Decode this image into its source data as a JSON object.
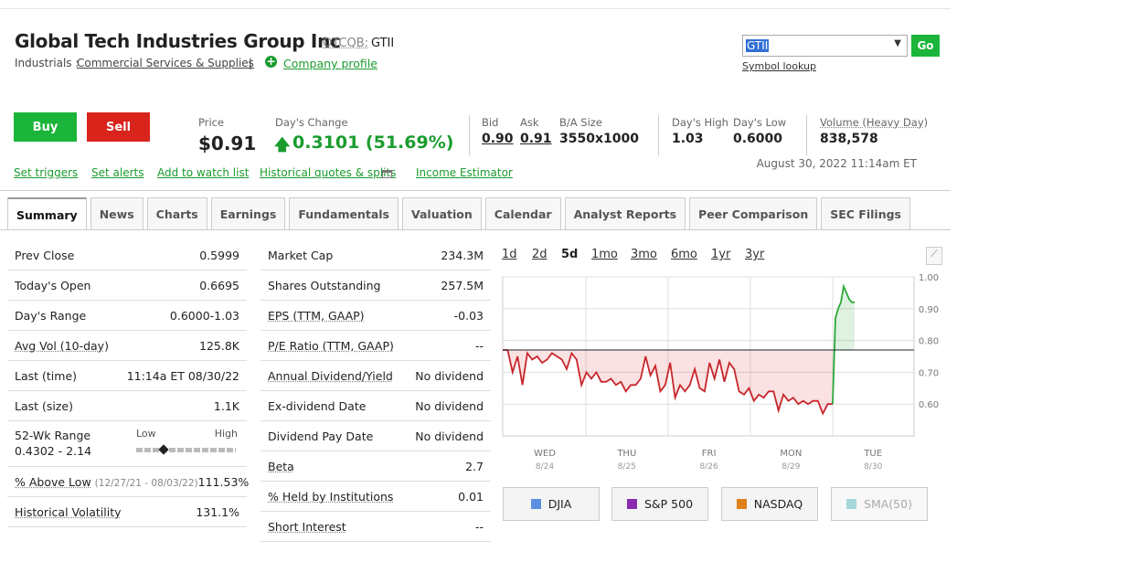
{
  "header": {
    "title": "Global Tech Industries Group Inc",
    "exchange": "OTCQB:",
    "symbol": "GTII",
    "sector": "Industrials :",
    "industry": "Commercial Services & Supplies",
    "separator": "|",
    "profile_link": "Company profile"
  },
  "search": {
    "value": "GTII",
    "button": "Go",
    "lookup": "Symbol lookup"
  },
  "actions": {
    "buy": "Buy",
    "sell": "Sell"
  },
  "quote": {
    "price_label": "Price",
    "price": "$0.91",
    "change_label": "Day's Change",
    "change": "0.3101 (51.69%)",
    "bid_label": "Bid",
    "bid": "0.90",
    "ask_label": "Ask",
    "ask": "0.91",
    "size_label": "B/A Size",
    "size": "3550x1000",
    "high_label": "Day's High",
    "high": "1.03",
    "low_label": "Day's Low",
    "low": "0.6000",
    "volume_label": "Volume (Heavy Day)",
    "volume": "838,578",
    "timestamp": "August 30, 2022 11:14am ET"
  },
  "links": [
    "Set triggers",
    "Set alerts",
    "Add to watch list",
    "Historical quotes & splits",
    "Income Estimator"
  ],
  "tabs": [
    "Summary",
    "News",
    "Charts",
    "Earnings",
    "Fundamentals",
    "Valuation",
    "Calendar",
    "Analyst Reports",
    "Peer Comparison",
    "SEC Filings"
  ],
  "active_tab": "Summary",
  "summary_left": [
    {
      "label": "Prev Close",
      "value": "0.5999"
    },
    {
      "label": "Today's Open",
      "value": "0.6695"
    },
    {
      "label": "Day's Range",
      "value": "0.6000-1.03"
    },
    {
      "label": "Avg Vol (10-day)",
      "value": "125.8K"
    },
    {
      "label": "Last (time)",
      "value": "11:14a ET 08/30/22"
    },
    {
      "label": "Last (size)",
      "value": "1.1K"
    },
    {
      "label": "52-Wk Range",
      "value": "0.4302 - 2.14",
      "low": "Low",
      "high": "High"
    },
    {
      "label": "% Above Low",
      "note": "(12/27/21 - 08/03/22)",
      "value": "111.53%"
    },
    {
      "label": "Historical Volatility",
      "value": "131.1%"
    }
  ],
  "summary_mid": [
    {
      "label": "Market Cap",
      "value": "234.3M"
    },
    {
      "label": "Shares Outstanding",
      "value": "257.5M"
    },
    {
      "label": "EPS (TTM, GAAP)",
      "value": "-0.03"
    },
    {
      "label": "P/E Ratio (TTM, GAAP)",
      "value": "--"
    },
    {
      "label": "Annual Dividend/Yield",
      "value": "No dividend"
    },
    {
      "label": "Ex-dividend Date",
      "value": "No dividend"
    },
    {
      "label": "Dividend Pay Date",
      "value": "No dividend"
    },
    {
      "label": "Beta",
      "value": "2.7"
    },
    {
      "label": "% Held by Institutions",
      "value": "0.01"
    },
    {
      "label": "Short Interest",
      "value": "--"
    }
  ],
  "chart": {
    "type": "line",
    "ranges": [
      "1d",
      "2d",
      "5d",
      "1mo",
      "3mo",
      "6mo",
      "1yr",
      "3yr"
    ],
    "active_range": "5d",
    "ylim": [
      0.5,
      1.0
    ],
    "yticks": [
      {
        "value": 1.0,
        "label": "1.00"
      },
      {
        "value": 0.9,
        "label": "0.90"
      },
      {
        "value": 0.8,
        "label": "0.80"
      },
      {
        "value": 0.7,
        "label": "0.70"
      },
      {
        "value": 0.6,
        "label": "0.60"
      }
    ],
    "x_labels": [
      {
        "day": "WED",
        "date": "8/24"
      },
      {
        "day": "THU",
        "date": "8/25"
      },
      {
        "day": "FRI",
        "date": "8/26"
      },
      {
        "day": "MON",
        "date": "8/29"
      },
      {
        "day": "TUE",
        "date": "8/30"
      }
    ],
    "baseline": 0.77,
    "series": [
      {
        "color": "#c8262b",
        "values": [
          0.77,
          0.77,
          0.7,
          0.75,
          0.66,
          0.76,
          0.74,
          0.75,
          0.73,
          0.74,
          0.76,
          0.75,
          0.74,
          0.71,
          0.76,
          0.74,
          0.66,
          0.7,
          0.68,
          0.7,
          0.67,
          0.67,
          0.68,
          0.66,
          0.67,
          0.64,
          0.66,
          0.66,
          0.68,
          0.75,
          0.69,
          0.72,
          0.64,
          0.66,
          0.73,
          0.62,
          0.66,
          0.64,
          0.66,
          0.71,
          0.65,
          0.64,
          0.73,
          0.68,
          0.74,
          0.67,
          0.73,
          0.71,
          0.64,
          0.63,
          0.65,
          0.61,
          0.63,
          0.62,
          0.64,
          0.64,
          0.58,
          0.63,
          0.61,
          0.62,
          0.6,
          0.61,
          0.6,
          0.61,
          0.61,
          0.57,
          0.6,
          0.6
        ]
      },
      {
        "color": "#2aa838",
        "values": [
          0.6,
          0.87,
          0.9,
          0.92,
          0.97,
          0.95,
          0.93,
          0.92,
          0.92
        ]
      }
    ],
    "legend": [
      {
        "name": "DJIA",
        "color": "#5b8fe0"
      },
      {
        "name": "S&P 500",
        "color": "#8a2ab3"
      },
      {
        "name": "NASDAQ",
        "color": "#e0801a"
      },
      {
        "name": "SMA(50)",
        "color": "#a6d8da",
        "disabled": true
      }
    ]
  }
}
